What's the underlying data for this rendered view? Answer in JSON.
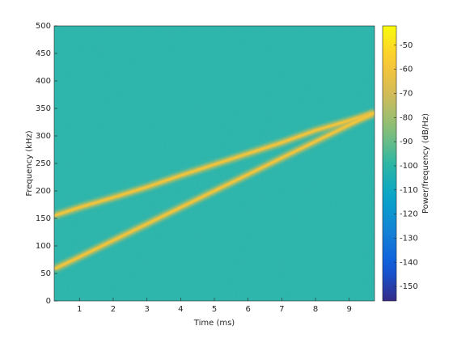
{
  "chart_data": {
    "type": "spectrogram",
    "xlabel": "Time (ms)",
    "ylabel": "Frequency (kHz)",
    "colorbar_label": "Power/frequency (dB/Hz)",
    "xlim": [
      0.25,
      9.75
    ],
    "xticks": [
      1,
      2,
      3,
      4,
      5,
      6,
      7,
      8,
      9
    ],
    "ylim": [
      0,
      500
    ],
    "yticks": [
      0,
      50,
      100,
      150,
      200,
      250,
      300,
      350,
      400,
      450,
      500
    ],
    "clim": [
      -156,
      -42
    ],
    "cticks": [
      -50,
      -60,
      -70,
      -80,
      -90,
      -100,
      -110,
      -120,
      -130,
      -140,
      -150
    ],
    "colormap": "parula",
    "noise_floor": -100,
    "series": [
      {
        "x": [
          0.25,
          1,
          2,
          3,
          4,
          5,
          6,
          7,
          8,
          9,
          9.75
        ],
        "values": [
          155,
          170,
          188,
          207,
          228,
          248,
          268,
          288,
          310,
          328,
          342
        ],
        "level": -65
      },
      {
        "x": [
          0.25,
          1,
          2,
          3,
          4,
          5,
          6,
          7,
          8,
          9,
          9.75
        ],
        "values": [
          58,
          80,
          110,
          140,
          170,
          200,
          230,
          260,
          290,
          320,
          342
        ],
        "level": -65
      }
    ]
  }
}
